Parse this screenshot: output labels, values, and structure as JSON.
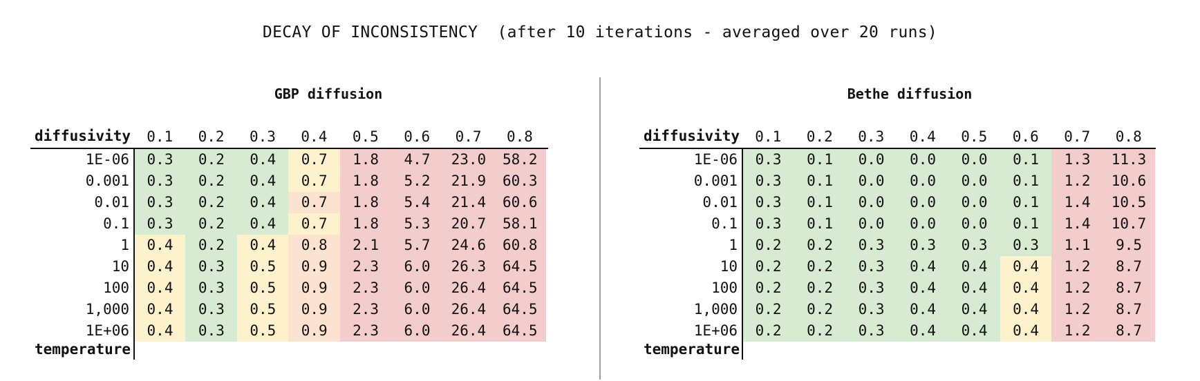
{
  "title": "DECAY OF INCONSISTENCY  (after 10 iterations - averaged over 20 runs)",
  "colors": {
    "green": "#d7ead2",
    "yellow": "#fdf2cc",
    "orange": "#fbe3cf",
    "red": "#f3cccc"
  },
  "chart_data": [
    {
      "type": "table",
      "title": "GBP diffusion",
      "column_header": "diffusivity",
      "row_header": "temperature",
      "columns": [
        "0.1",
        "0.2",
        "0.3",
        "0.4",
        "0.5",
        "0.6",
        "0.7",
        "0.8"
      ],
      "rows": [
        "1E-06",
        "0.001",
        "0.01",
        "0.1",
        "1",
        "10",
        "100",
        "1,000",
        "1E+06"
      ],
      "values": [
        [
          "0.3",
          "0.2",
          "0.4",
          "0.7",
          "1.8",
          "4.7",
          "23.0",
          "58.2"
        ],
        [
          "0.3",
          "0.2",
          "0.4",
          "0.7",
          "1.8",
          "5.2",
          "21.9",
          "60.3"
        ],
        [
          "0.3",
          "0.2",
          "0.4",
          "0.7",
          "1.8",
          "5.4",
          "21.4",
          "60.6"
        ],
        [
          "0.3",
          "0.2",
          "0.4",
          "0.7",
          "1.8",
          "5.3",
          "20.7",
          "58.1"
        ],
        [
          "0.4",
          "0.2",
          "0.4",
          "0.8",
          "2.1",
          "5.7",
          "24.6",
          "60.8"
        ],
        [
          "0.4",
          "0.3",
          "0.5",
          "0.9",
          "2.3",
          "6.0",
          "26.3",
          "64.5"
        ],
        [
          "0.4",
          "0.3",
          "0.5",
          "0.9",
          "2.3",
          "6.0",
          "26.4",
          "64.5"
        ],
        [
          "0.4",
          "0.3",
          "0.5",
          "0.9",
          "2.3",
          "6.0",
          "26.4",
          "64.5"
        ],
        [
          "0.4",
          "0.3",
          "0.5",
          "0.9",
          "2.3",
          "6.0",
          "26.4",
          "64.5"
        ]
      ],
      "cell_colors": [
        [
          "green",
          "green",
          "green",
          "yellow",
          "red",
          "red",
          "red",
          "red"
        ],
        [
          "green",
          "green",
          "green",
          "yellow",
          "red",
          "red",
          "red",
          "red"
        ],
        [
          "green",
          "green",
          "green",
          "orange",
          "red",
          "red",
          "red",
          "red"
        ],
        [
          "green",
          "green",
          "green",
          "yellow",
          "red",
          "red",
          "red",
          "red"
        ],
        [
          "yellow",
          "green",
          "yellow",
          "orange",
          "red",
          "red",
          "red",
          "red"
        ],
        [
          "yellow",
          "green",
          "yellow",
          "orange",
          "red",
          "red",
          "red",
          "red"
        ],
        [
          "yellow",
          "green",
          "yellow",
          "orange",
          "red",
          "red",
          "red",
          "red"
        ],
        [
          "yellow",
          "green",
          "yellow",
          "orange",
          "red",
          "red",
          "red",
          "red"
        ],
        [
          "yellow",
          "green",
          "yellow",
          "orange",
          "red",
          "red",
          "red",
          "red"
        ]
      ]
    },
    {
      "type": "table",
      "title": "Bethe diffusion",
      "column_header": "diffusivity",
      "row_header": "temperature",
      "columns": [
        "0.1",
        "0.2",
        "0.3",
        "0.4",
        "0.5",
        "0.6",
        "0.7",
        "0.8"
      ],
      "rows": [
        "1E-06",
        "0.001",
        "0.01",
        "0.1",
        "1",
        "10",
        "100",
        "1,000",
        "1E+06"
      ],
      "values": [
        [
          "0.3",
          "0.1",
          "0.0",
          "0.0",
          "0.0",
          "0.1",
          "1.3",
          "11.3"
        ],
        [
          "0.3",
          "0.1",
          "0.0",
          "0.0",
          "0.0",
          "0.1",
          "1.2",
          "10.6"
        ],
        [
          "0.3",
          "0.1",
          "0.0",
          "0.0",
          "0.0",
          "0.1",
          "1.4",
          "10.5"
        ],
        [
          "0.3",
          "0.1",
          "0.0",
          "0.0",
          "0.0",
          "0.1",
          "1.4",
          "10.7"
        ],
        [
          "0.2",
          "0.2",
          "0.3",
          "0.3",
          "0.3",
          "0.3",
          "1.1",
          "9.5"
        ],
        [
          "0.2",
          "0.2",
          "0.3",
          "0.4",
          "0.4",
          "0.4",
          "1.2",
          "8.7"
        ],
        [
          "0.2",
          "0.2",
          "0.3",
          "0.4",
          "0.4",
          "0.4",
          "1.2",
          "8.7"
        ],
        [
          "0.2",
          "0.2",
          "0.3",
          "0.4",
          "0.4",
          "0.4",
          "1.2",
          "8.7"
        ],
        [
          "0.2",
          "0.2",
          "0.3",
          "0.4",
          "0.4",
          "0.4",
          "1.2",
          "8.7"
        ]
      ],
      "cell_colors": [
        [
          "green",
          "green",
          "green",
          "green",
          "green",
          "green",
          "red",
          "red"
        ],
        [
          "green",
          "green",
          "green",
          "green",
          "green",
          "green",
          "red",
          "red"
        ],
        [
          "green",
          "green",
          "green",
          "green",
          "green",
          "green",
          "red",
          "red"
        ],
        [
          "green",
          "green",
          "green",
          "green",
          "green",
          "green",
          "red",
          "red"
        ],
        [
          "green",
          "green",
          "green",
          "green",
          "green",
          "green",
          "red",
          "red"
        ],
        [
          "green",
          "green",
          "green",
          "green",
          "green",
          "yellow",
          "red",
          "red"
        ],
        [
          "green",
          "green",
          "green",
          "green",
          "green",
          "yellow",
          "red",
          "red"
        ],
        [
          "green",
          "green",
          "green",
          "green",
          "green",
          "yellow",
          "red",
          "red"
        ],
        [
          "green",
          "green",
          "green",
          "green",
          "green",
          "yellow",
          "red",
          "red"
        ]
      ]
    }
  ]
}
